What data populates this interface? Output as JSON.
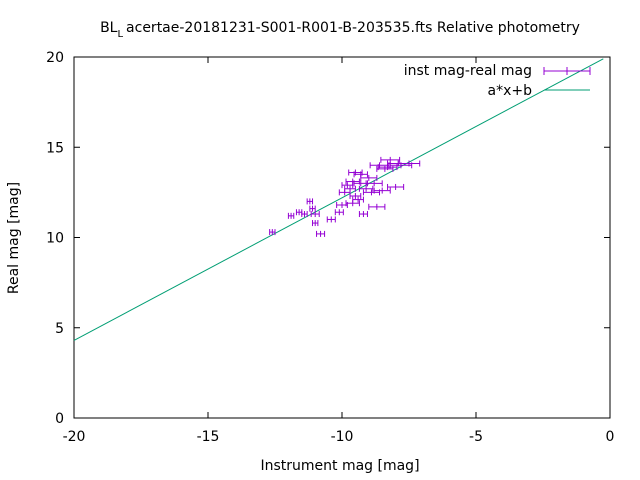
{
  "chart_data": {
    "type": "scatter",
    "title": "BL Lacertae-20181231-S001-R001-B-203535.fts Relative photometry",
    "title_main": "BL",
    "title_sub": "L",
    "title_rest": "acertae-20181231-S001-R001-B-203535.fts Relative photometry",
    "xlabel": "Instrument mag [mag]",
    "ylabel": "Real mag [mag]",
    "xlim": [
      -20,
      0
    ],
    "ylim": [
      0,
      20
    ],
    "xticks": [
      -20,
      -15,
      -10,
      -5,
      0
    ],
    "yticks": [
      0,
      5,
      10,
      15,
      20
    ],
    "xtick_labels": [
      "-20",
      "-15",
      "-10",
      "-5",
      "0"
    ],
    "ytick_labels": [
      "0",
      "5",
      "10",
      "15",
      "20"
    ],
    "grid": false,
    "legend_position": "top-right",
    "legend": [
      {
        "label": "inst mag-real mag",
        "style": "errorbar"
      },
      {
        "label": "a*x+b",
        "style": "line"
      }
    ],
    "series": [
      {
        "name": "inst mag-real mag",
        "color": "#9400d3",
        "points": [
          {
            "x": -12.6,
            "y": 10.3,
            "xerr": 0.1
          },
          {
            "x": -11.9,
            "y": 11.2,
            "xerr": 0.1
          },
          {
            "x": -11.6,
            "y": 11.4,
            "xerr": 0.1
          },
          {
            "x": -11.4,
            "y": 11.3,
            "xerr": 0.1
          },
          {
            "x": -11.2,
            "y": 12.0,
            "xerr": 0.1
          },
          {
            "x": -11.1,
            "y": 11.6,
            "xerr": 0.1
          },
          {
            "x": -11.0,
            "y": 11.3,
            "xerr": 0.15
          },
          {
            "x": -11.0,
            "y": 10.8,
            "xerr": 0.1
          },
          {
            "x": -10.8,
            "y": 10.2,
            "xerr": 0.15
          },
          {
            "x": -10.4,
            "y": 11.0,
            "xerr": 0.15
          },
          {
            "x": -10.1,
            "y": 11.4,
            "xerr": 0.15
          },
          {
            "x": -10.0,
            "y": 11.8,
            "xerr": 0.2
          },
          {
            "x": -9.9,
            "y": 12.5,
            "xerr": 0.2
          },
          {
            "x": -9.8,
            "y": 12.9,
            "xerr": 0.2
          },
          {
            "x": -9.7,
            "y": 12.7,
            "xerr": 0.2
          },
          {
            "x": -9.6,
            "y": 13.1,
            "xerr": 0.25
          },
          {
            "x": -9.6,
            "y": 11.9,
            "xerr": 0.25
          },
          {
            "x": -9.5,
            "y": 12.3,
            "xerr": 0.2
          },
          {
            "x": -9.5,
            "y": 13.6,
            "xerr": 0.25
          },
          {
            "x": -9.4,
            "y": 12.1,
            "xerr": 0.2
          },
          {
            "x": -9.3,
            "y": 13.0,
            "xerr": 0.25
          },
          {
            "x": -9.3,
            "y": 13.5,
            "xerr": 0.25
          },
          {
            "x": -9.2,
            "y": 11.3,
            "xerr": 0.15
          },
          {
            "x": -9.1,
            "y": 12.7,
            "xerr": 0.25
          },
          {
            "x": -9.0,
            "y": 13.3,
            "xerr": 0.3
          },
          {
            "x": -8.9,
            "y": 12.5,
            "xerr": 0.3
          },
          {
            "x": -8.8,
            "y": 13.0,
            "xerr": 0.3
          },
          {
            "x": -8.7,
            "y": 11.7,
            "xerr": 0.3
          },
          {
            "x": -8.6,
            "y": 14.0,
            "xerr": 0.35
          },
          {
            "x": -8.5,
            "y": 12.6,
            "xerr": 0.3
          },
          {
            "x": -8.4,
            "y": 13.8,
            "xerr": 0.3
          },
          {
            "x": -8.3,
            "y": 13.9,
            "xerr": 0.35
          },
          {
            "x": -8.2,
            "y": 14.3,
            "xerr": 0.35
          },
          {
            "x": -8.0,
            "y": 12.8,
            "xerr": 0.3
          },
          {
            "x": -7.9,
            "y": 14.1,
            "xerr": 0.4
          },
          {
            "x": -7.8,
            "y": 14.0,
            "xerr": 0.4
          },
          {
            "x": -7.5,
            "y": 14.1,
            "xerr": 0.4
          }
        ]
      }
    ],
    "fit_line": {
      "name": "a*x+b",
      "color": "#009e73",
      "a": 0.79,
      "b": 20.1,
      "x_range": [
        -20,
        -0.25
      ]
    }
  }
}
